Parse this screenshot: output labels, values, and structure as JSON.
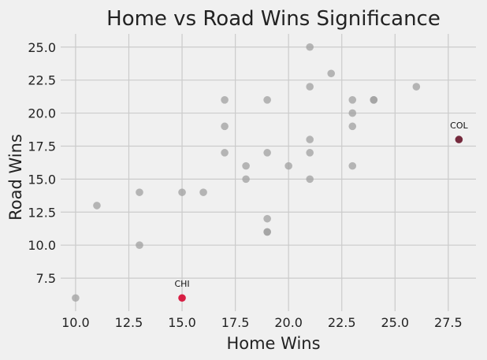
{
  "chart_data": {
    "type": "scatter",
    "title": "Home vs Road Wins Significance",
    "xlabel": "Home Wins",
    "ylabel": "Road Wins",
    "xlim": [
      9.3,
      28.8
    ],
    "ylim": [
      5.0,
      26.0
    ],
    "xticks": [
      "10.0",
      "12.5",
      "15.0",
      "17.5",
      "20.0",
      "22.5",
      "25.0",
      "27.5"
    ],
    "yticks": [
      "7.5",
      "10.0",
      "12.5",
      "15.0",
      "17.5",
      "20.0",
      "22.5",
      "25.0"
    ],
    "grid": true,
    "colors": {
      "background": "#f0f0f0",
      "default_point": "#a0a0a0",
      "CHI": "#d6133a",
      "COL": "#6e1f33"
    },
    "points": [
      {
        "x": 10,
        "y": 6
      },
      {
        "x": 11,
        "y": 13
      },
      {
        "x": 13,
        "y": 14
      },
      {
        "x": 13,
        "y": 10
      },
      {
        "x": 15,
        "y": 14
      },
      {
        "x": 16,
        "y": 14
      },
      {
        "x": 17,
        "y": 21
      },
      {
        "x": 17,
        "y": 19
      },
      {
        "x": 17,
        "y": 17
      },
      {
        "x": 18,
        "y": 16
      },
      {
        "x": 18,
        "y": 15
      },
      {
        "x": 19,
        "y": 21
      },
      {
        "x": 19,
        "y": 17
      },
      {
        "x": 19,
        "y": 12
      },
      {
        "x": 19,
        "y": 11
      },
      {
        "x": 19,
        "y": 11
      },
      {
        "x": 20,
        "y": 16
      },
      {
        "x": 21,
        "y": 25
      },
      {
        "x": 21,
        "y": 22
      },
      {
        "x": 21,
        "y": 18
      },
      {
        "x": 21,
        "y": 17
      },
      {
        "x": 21,
        "y": 15
      },
      {
        "x": 22,
        "y": 23
      },
      {
        "x": 23,
        "y": 21
      },
      {
        "x": 23,
        "y": 20
      },
      {
        "x": 23,
        "y": 19
      },
      {
        "x": 23,
        "y": 16
      },
      {
        "x": 24,
        "y": 21
      },
      {
        "x": 24,
        "y": 21
      },
      {
        "x": 26,
        "y": 22
      },
      {
        "x": 15,
        "y": 6,
        "label": "CHI",
        "highlight": "CHI"
      },
      {
        "x": 28,
        "y": 18,
        "label": "COL",
        "highlight": "COL"
      }
    ]
  }
}
